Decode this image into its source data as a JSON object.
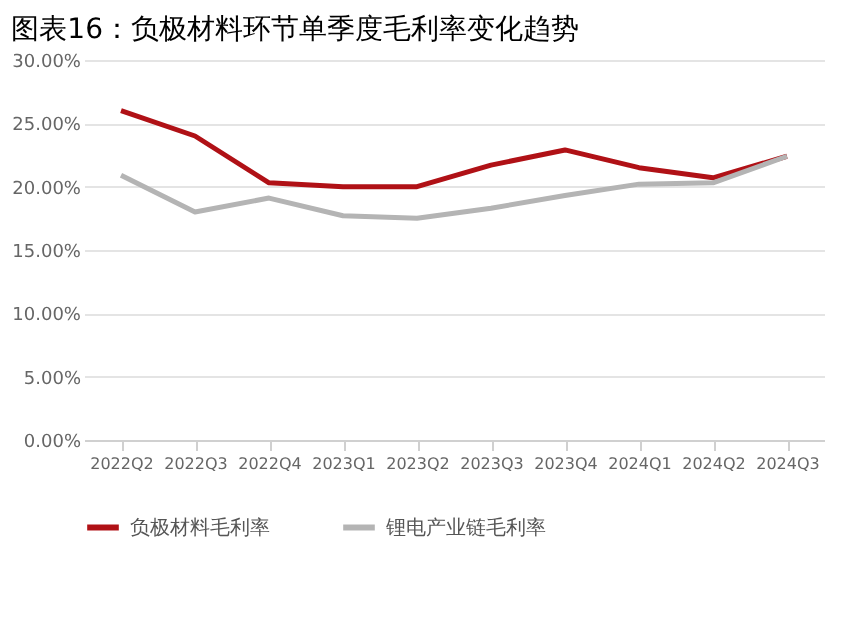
{
  "chart_data": {
    "type": "line",
    "title": "图表16：负极材料环节单季度毛利率变化趋势",
    "categories": [
      "2022Q2",
      "2022Q3",
      "2022Q4",
      "2023Q1",
      "2023Q2",
      "2023Q3",
      "2023Q4",
      "2024Q1",
      "2024Q2",
      "2024Q3"
    ],
    "series": [
      {
        "name": "负极材料毛利率",
        "color": "#b01116",
        "values": [
          26.0,
          24.0,
          20.3,
          20.0,
          20.0,
          21.7,
          22.9,
          21.5,
          20.7,
          22.4
        ]
      },
      {
        "name": "锂电产业链毛利率",
        "color": "#b4b4b4",
        "values": [
          20.9,
          18.0,
          19.1,
          17.7,
          17.5,
          18.3,
          19.3,
          20.2,
          20.3,
          22.4
        ]
      }
    ],
    "ylim": [
      0,
      30
    ],
    "yticks": [
      {
        "value": 0,
        "label": "0.00%"
      },
      {
        "value": 5,
        "label": "5.00%"
      },
      {
        "value": 10,
        "label": "10.00%"
      },
      {
        "value": 15,
        "label": "15.00%"
      },
      {
        "value": 20,
        "label": "20.00%"
      },
      {
        "value": 25,
        "label": "25.00%"
      },
      {
        "value": 30,
        "label": "30.00%"
      }
    ],
    "grid": "y",
    "legend": "bottom",
    "marker": "none",
    "line_style": "solid"
  }
}
